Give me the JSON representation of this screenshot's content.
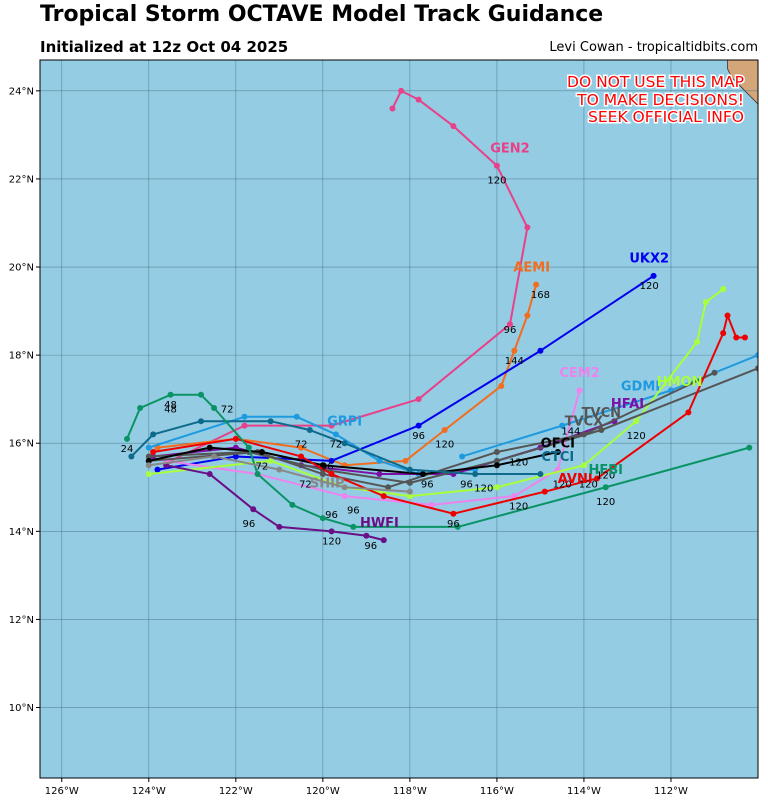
{
  "header": {
    "title": "Tropical Storm OCTAVE Model Track Guidance",
    "subtitle": "Initialized at 12z Oct 04 2025",
    "credit": "Levi Cowan - tropicaltidbits.com"
  },
  "warning": [
    "DO NOT USE THIS MAP",
    "TO MAKE DECISIONS!",
    "SEEK OFFICIAL INFO"
  ],
  "colors": {
    "ocean": "#94cce3",
    "land": "#d4a579",
    "grid": "#3f6e86"
  },
  "chart_data": {
    "type": "line",
    "projection": "lon-lat",
    "xlim": [
      -126.5,
      -110
    ],
    "ylim": [
      8.4,
      24.7
    ],
    "xticks": [
      -126,
      -124,
      -122,
      -120,
      -118,
      -116,
      -114,
      -112
    ],
    "xtick_labels": [
      "126°W",
      "124°W",
      "122°W",
      "120°W",
      "118°W",
      "116°W",
      "114°W",
      "112°W"
    ],
    "yticks": [
      10,
      12,
      14,
      16,
      18,
      20,
      22,
      24
    ],
    "ytick_labels": [
      "10°N",
      "12°N",
      "14°N",
      "16°N",
      "18°N",
      "20°N",
      "22°N",
      "24°N"
    ],
    "grid": true,
    "land": [
      [
        -110.7,
        24.7
      ],
      [
        -110,
        24.7
      ],
      [
        -110,
        23.7
      ],
      [
        -110.4,
        24.1
      ],
      [
        -110.6,
        24.3
      ],
      [
        -110.7,
        24.5
      ]
    ],
    "series": [
      {
        "name": "GEN2",
        "color": "#e8418a",
        "label_pos": [
          -115.7,
          22.6
        ],
        "points": [
          [
            -123.5,
            15.6
          ],
          [
            -121.8,
            16.4
          ],
          [
            -119.8,
            16.4
          ],
          [
            -117.8,
            17.0
          ],
          [
            -115.7,
            18.7
          ],
          [
            -115.3,
            20.9
          ],
          [
            -116.0,
            22.3
          ],
          [
            -117.0,
            23.2
          ],
          [
            -117.8,
            23.8
          ],
          [
            -118.2,
            24.0
          ],
          [
            -118.4,
            23.6
          ]
        ],
        "hours": [
          {
            "t": "96",
            "p": [
              -115.7,
              18.5
            ]
          },
          {
            "t": "120",
            "p": [
              -116.0,
              21.9
            ]
          }
        ]
      },
      {
        "name": "AEMI",
        "color": "#f26d1e",
        "label_pos": [
          -115.2,
          19.9
        ],
        "points": [
          [
            -123.8,
            15.9
          ],
          [
            -122.0,
            16.1
          ],
          [
            -120.5,
            15.9
          ],
          [
            -119.5,
            15.5
          ],
          [
            -118.1,
            15.6
          ],
          [
            -117.2,
            16.3
          ],
          [
            -115.9,
            17.3
          ],
          [
            -115.6,
            18.1
          ],
          [
            -115.3,
            18.9
          ],
          [
            -115.1,
            19.6
          ]
        ],
        "hours": [
          {
            "t": "120",
            "p": [
              -117.2,
              15.9
            ]
          },
          {
            "t": "144",
            "p": [
              -115.6,
              17.8
            ]
          },
          {
            "t": "168",
            "p": [
              -115.0,
              19.3
            ]
          }
        ]
      },
      {
        "name": "UKX2",
        "color": "#0000ee",
        "label_pos": [
          -112.5,
          20.1
        ],
        "points": [
          [
            -123.8,
            15.4
          ],
          [
            -122.0,
            15.7
          ],
          [
            -119.8,
            15.6
          ],
          [
            -117.8,
            16.4
          ],
          [
            -115.0,
            18.1
          ],
          [
            -112.4,
            19.8
          ]
        ],
        "hours": [
          {
            "t": "96",
            "p": [
              -117.8,
              16.1
            ]
          },
          {
            "t": "120",
            "p": [
              -112.5,
              19.5
            ]
          }
        ]
      },
      {
        "name": "CEM2",
        "color": "#ee82ee",
        "label_pos": [
          -114.1,
          17.5
        ],
        "points": [
          [
            -123.6,
            15.6
          ],
          [
            -121.5,
            15.3
          ],
          [
            -119.5,
            14.8
          ],
          [
            -117.5,
            14.6
          ],
          [
            -115.6,
            14.8
          ],
          [
            -114.6,
            15.4
          ],
          [
            -114.1,
            17.2
          ]
        ],
        "hours": []
      },
      {
        "name": "GRPI",
        "color": "#1e9be0",
        "label_pos": [
          -119.5,
          16.4
        ],
        "points": [
          [
            -124.0,
            15.9
          ],
          [
            -121.8,
            16.6
          ],
          [
            -120.6,
            16.6
          ],
          [
            -119.7,
            16.2
          ],
          [
            -118.7,
            15.6
          ],
          [
            -117.8,
            15.3
          ],
          [
            -116.5,
            15.4
          ]
        ],
        "hours": [
          {
            "t": "72",
            "p": [
              -119.7,
              15.9
            ]
          }
        ]
      },
      {
        "name": "GDMI",
        "color": "#1e9be0",
        "label_pos": [
          -112.7,
          17.2
        ],
        "points": [
          [
            -116.8,
            15.7
          ],
          [
            -114.5,
            16.4
          ],
          [
            -112.0,
            17.2
          ],
          [
            -110.0,
            18.0
          ]
        ],
        "hours": []
      },
      {
        "name": "HMON",
        "color": "#a8ff3a",
        "label_pos": [
          -111.8,
          17.3
        ],
        "points": [
          [
            -124.0,
            15.3
          ],
          [
            -121.2,
            15.6
          ],
          [
            -119.5,
            15.0
          ],
          [
            -118.0,
            14.8
          ],
          [
            -116.0,
            15.0
          ],
          [
            -114.0,
            15.5
          ],
          [
            -112.8,
            16.5
          ],
          [
            -111.4,
            18.3
          ],
          [
            -111.2,
            19.2
          ],
          [
            -110.8,
            19.5
          ]
        ],
        "hours": [
          {
            "t": "120",
            "p": [
              -113.5,
              15.2
            ]
          }
        ]
      },
      {
        "name": "HFAI",
        "color": "#7b0fa6",
        "label_pos": [
          -113.0,
          16.8
        ],
        "points": [
          [
            -123.9,
            15.7
          ],
          [
            -122.0,
            15.9
          ],
          [
            -120.5,
            15.5
          ],
          [
            -118.7,
            15.3
          ],
          [
            -117.0,
            15.3
          ],
          [
            -115.0,
            15.9
          ],
          [
            -113.3,
            16.5
          ]
        ],
        "hours": [
          {
            "t": "120",
            "p": [
              -112.8,
              16.1
            ]
          }
        ]
      },
      {
        "name": "TVCN",
        "color": "#555555",
        "label_pos": [
          -113.6,
          16.6
        ],
        "points": [
          [
            -124.0,
            15.7
          ],
          [
            -121.7,
            15.8
          ],
          [
            -120.0,
            15.4
          ],
          [
            -118.0,
            15.1
          ],
          [
            -116.0,
            15.6
          ],
          [
            -113.6,
            16.3
          ],
          [
            -110.0,
            17.7
          ]
        ],
        "hours": []
      },
      {
        "name": "TVCX",
        "color": "#555555",
        "label_pos": [
          -114.0,
          16.4
        ],
        "points": [
          [
            -124.0,
            15.6
          ],
          [
            -121.5,
            15.8
          ],
          [
            -120.0,
            15.3
          ],
          [
            -118.5,
            15.0
          ],
          [
            -116.0,
            15.8
          ],
          [
            -114.0,
            16.2
          ],
          [
            -111.0,
            17.6
          ]
        ],
        "hours": []
      },
      {
        "name": "OFCI",
        "color": "#000000",
        "label_pos": [
          -114.6,
          15.9
        ],
        "points": [
          [
            -124.0,
            15.6
          ],
          [
            -122.6,
            15.9
          ],
          [
            -121.4,
            15.8
          ],
          [
            -120.0,
            15.5
          ],
          [
            -117.7,
            15.3
          ],
          [
            -116.0,
            15.5
          ],
          [
            -114.6,
            15.8
          ]
        ],
        "hours": [
          {
            "t": "144",
            "p": [
              -114.3,
              16.2
            ]
          }
        ]
      },
      {
        "name": "CTCI",
        "color": "#0d6a8c",
        "label_pos": [
          -114.6,
          15.6
        ],
        "points": [
          [
            -124.4,
            15.7
          ],
          [
            -123.9,
            16.2
          ],
          [
            -122.8,
            16.5
          ],
          [
            -121.2,
            16.5
          ],
          [
            -120.3,
            16.3
          ],
          [
            -119.5,
            16.0
          ],
          [
            -118.0,
            15.4
          ],
          [
            -116.5,
            15.3
          ],
          [
            -115.0,
            15.3
          ]
        ],
        "hours": [
          {
            "t": "120",
            "p": [
              -114.5,
              15.0
            ]
          }
        ]
      },
      {
        "name": "AVNI",
        "color": "#ee0000",
        "label_pos": [
          -114.2,
          15.1
        ],
        "points": [
          [
            -123.9,
            15.8
          ],
          [
            -122.0,
            16.1
          ],
          [
            -120.5,
            15.7
          ],
          [
            -119.8,
            15.3
          ],
          [
            -118.6,
            14.8
          ],
          [
            -117.0,
            14.4
          ],
          [
            -114.9,
            14.9
          ],
          [
            -113.7,
            15.2
          ],
          [
            -111.6,
            16.7
          ],
          [
            -110.8,
            18.5
          ],
          [
            -110.7,
            18.9
          ],
          [
            -110.5,
            18.4
          ],
          [
            -110.3,
            18.4
          ]
        ],
        "hours": [
          {
            "t": "120",
            "p": [
              -113.9,
              15.0
            ]
          }
        ]
      },
      {
        "name": "HFBI",
        "color": "#0a9466",
        "label_pos": [
          -113.5,
          15.3
        ],
        "points": [
          [
            -124.5,
            16.1
          ],
          [
            -124.2,
            16.8
          ],
          [
            -123.5,
            17.1
          ],
          [
            -122.8,
            17.1
          ],
          [
            -122.5,
            16.8
          ],
          [
            -121.7,
            15.9
          ],
          [
            -121.5,
            15.3
          ],
          [
            -120.7,
            14.6
          ],
          [
            -120.0,
            14.3
          ],
          [
            -119.3,
            14.1
          ],
          [
            -116.9,
            14.1
          ],
          [
            -113.5,
            15.0
          ],
          [
            -110.2,
            15.9
          ]
        ],
        "hours": [
          {
            "t": "120",
            "p": [
              -113.5,
              14.6
            ]
          },
          {
            "t": "48",
            "p": [
              -123.5,
              16.7
            ]
          }
        ]
      },
      {
        "name": "HWFI",
        "color": "#6a0f85",
        "label_pos": [
          -118.7,
          14.1
        ],
        "points": [
          [
            -123.6,
            15.5
          ],
          [
            -122.6,
            15.3
          ],
          [
            -121.6,
            14.5
          ],
          [
            -121.0,
            14.1
          ],
          [
            -119.8,
            14.0
          ],
          [
            -119.0,
            13.9
          ],
          [
            -118.6,
            13.8
          ]
        ],
        "hours": [
          {
            "t": "96",
            "p": [
              -121.7,
              14.1
            ]
          },
          {
            "t": "120",
            "p": [
              -119.8,
              13.7
            ]
          },
          {
            "t": "96",
            "p": [
              -118.9,
              13.6
            ]
          }
        ]
      },
      {
        "name": "SHIP",
        "color": "#888888",
        "label_pos": [
          -119.9,
          15.0
        ],
        "points": [
          [
            -124.0,
            15.5
          ],
          [
            -122.5,
            15.7
          ],
          [
            -121.0,
            15.4
          ],
          [
            -119.5,
            15.0
          ],
          [
            -118.0,
            14.9
          ]
        ],
        "hours": []
      }
    ],
    "hour_labels": [
      {
        "t": "72",
        "p": [
          -122.2,
          16.7
        ]
      },
      {
        "t": "48",
        "p": [
          -123.5,
          16.8
        ]
      },
      {
        "t": "24",
        "p": [
          -124.5,
          15.8
        ]
      },
      {
        "t": "72",
        "p": [
          -120.5,
          15.9
        ]
      },
      {
        "t": "72",
        "p": [
          -121.4,
          15.4
        ]
      },
      {
        "t": "96",
        "p": [
          -119.9,
          15.4
        ]
      },
      {
        "t": "96",
        "p": [
          -117.6,
          15.0
        ]
      },
      {
        "t": "96",
        "p": [
          -116.7,
          15.0
        ]
      },
      {
        "t": "120",
        "p": [
          -116.3,
          14.9
        ]
      },
      {
        "t": "120",
        "p": [
          -115.5,
          15.5
        ]
      },
      {
        "t": "96",
        "p": [
          -119.3,
          14.4
        ]
      },
      {
        "t": "96",
        "p": [
          -119.8,
          14.3
        ]
      },
      {
        "t": "120",
        "p": [
          -115.5,
          14.5
        ]
      },
      {
        "t": "96",
        "p": [
          -117.0,
          14.1
        ]
      },
      {
        "t": "72",
        "p": [
          -120.4,
          15.0
        ]
      }
    ]
  }
}
